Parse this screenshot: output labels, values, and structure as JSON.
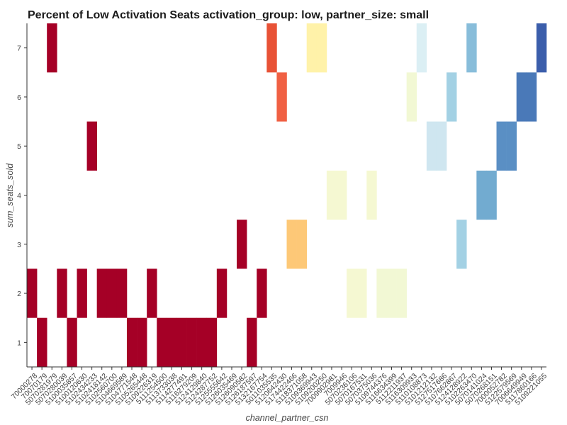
{
  "chart_data": {
    "type": "heatmap",
    "title": "Percent of Low Activation Seats  activation_group: low, partner_size: small",
    "xlabel": "channel_partner_csn",
    "ylabel": "sum_seats_sold",
    "ylim": [
      0.5,
      7.5
    ],
    "y_ticks": [
      1,
      2,
      3,
      4,
      5,
      6,
      7
    ],
    "grid": false,
    "legend": "none",
    "x_tick_labels": [
      "70000278",
      "70070179",
      "5070281979",
      "5070280039",
      "5100035857",
      "5100120630",
      "5102434233",
      "5102418142",
      "5102560700",
      "5104669589",
      "5104771548",
      "5105265448",
      "5109226319",
      "5111254500",
      "5113733038",
      "5114277491",
      "5116279209",
      "5124129840",
      "5124287752",
      "5125555642",
      "5126035469",
      "5126090582",
      "5126187597",
      "5132167754",
      "5011035535",
      "5120642430",
      "5174422466",
      "5118371058",
      "5109369943",
      "5109200250",
      "7009902981",
      "7009946",
      "5070236106",
      "5070167531",
      "5070375036",
      "5109744376",
      "5116634399",
      "5112211937",
      "5116309933",
      "5110108873",
      "5101212132",
      "5127517686",
      "5107662867",
      "5124128922",
      "5102263470",
      "5070141024",
      "5070268151",
      "7000052782",
      "5122579569",
      "7006649949",
      "5117860166",
      "5109221055"
    ],
    "cells": [
      {
        "col": 0,
        "y": 2,
        "color": "#a50026"
      },
      {
        "col": 1,
        "y": 1,
        "color": "#a50026"
      },
      {
        "col": 2,
        "y": 7,
        "color": "#a50026"
      },
      {
        "col": 3,
        "y": 2,
        "color": "#a50026"
      },
      {
        "col": 4,
        "y": 1,
        "color": "#a50026"
      },
      {
        "col": 5,
        "y": 2,
        "color": "#a50026"
      },
      {
        "col": 6,
        "y": 5,
        "color": "#a50026"
      },
      {
        "col": 7,
        "y": 2,
        "color": "#a50026"
      },
      {
        "col": 8,
        "y": 2,
        "color": "#a50026"
      },
      {
        "col": 9,
        "y": 2,
        "color": "#a50026"
      },
      {
        "col": 10,
        "y": 1,
        "color": "#a50026"
      },
      {
        "col": 11,
        "y": 1,
        "color": "#a50026"
      },
      {
        "col": 12,
        "y": 2,
        "color": "#a50026"
      },
      {
        "col": 13,
        "y": 1,
        "color": "#a50026"
      },
      {
        "col": 14,
        "y": 1,
        "color": "#a50026"
      },
      {
        "col": 15,
        "y": 1,
        "color": "#a50026"
      },
      {
        "col": 16,
        "y": 1,
        "color": "#a50026"
      },
      {
        "col": 17,
        "y": 1,
        "color": "#a50026"
      },
      {
        "col": 18,
        "y": 1,
        "color": "#a50026"
      },
      {
        "col": 19,
        "y": 2,
        "color": "#a50026"
      },
      {
        "col": 21,
        "y": 3,
        "color": "#a50026"
      },
      {
        "col": 22,
        "y": 1,
        "color": "#a50026"
      },
      {
        "col": 23,
        "y": 2,
        "color": "#a50026"
      },
      {
        "col": 24,
        "y": 7,
        "color": "#e85236"
      },
      {
        "col": 25,
        "y": 6,
        "color": "#f06043"
      },
      {
        "col": 26,
        "y": 3,
        "color": "#fdc877"
      },
      {
        "col": 27,
        "y": 3,
        "color": "#fdc877"
      },
      {
        "col": 28,
        "y": 7,
        "color": "#fff2a9"
      },
      {
        "col": 29,
        "y": 7,
        "color": "#fff2a9"
      },
      {
        "col": 30,
        "y": 4,
        "color": "#f5f8d2"
      },
      {
        "col": 31,
        "y": 4,
        "color": "#f5f8d2"
      },
      {
        "col": 32,
        "y": 2,
        "color": "#f5f8d2"
      },
      {
        "col": 33,
        "y": 2,
        "color": "#f5f8d2"
      },
      {
        "col": 34,
        "y": 4,
        "color": "#f5f8d2"
      },
      {
        "col": 35,
        "y": 2,
        "color": "#f2f8d4"
      },
      {
        "col": 36,
        "y": 2,
        "color": "#f2f8d4"
      },
      {
        "col": 37,
        "y": 2,
        "color": "#f2f8d4"
      },
      {
        "col": 38,
        "y": 6,
        "color": "#f2f8d4"
      },
      {
        "col": 39,
        "y": 7,
        "color": "#dbeff4"
      },
      {
        "col": 40,
        "y": 5,
        "color": "#cfe6f0"
      },
      {
        "col": 41,
        "y": 5,
        "color": "#cfe6f0"
      },
      {
        "col": 42,
        "y": 6,
        "color": "#a3d1e4"
      },
      {
        "col": 43,
        "y": 3,
        "color": "#a3d1e4"
      },
      {
        "col": 44,
        "y": 7,
        "color": "#88bdda"
      },
      {
        "col": 45,
        "y": 4,
        "color": "#72abd0"
      },
      {
        "col": 46,
        "y": 4,
        "color": "#72abd0"
      },
      {
        "col": 47,
        "y": 5,
        "color": "#5a8fc4"
      },
      {
        "col": 48,
        "y": 5,
        "color": "#5a8fc4"
      },
      {
        "col": 49,
        "y": 6,
        "color": "#4a79b8"
      },
      {
        "col": 50,
        "y": 6,
        "color": "#4a79b8"
      },
      {
        "col": 51,
        "y": 7,
        "color": "#3b5eab"
      }
    ]
  }
}
